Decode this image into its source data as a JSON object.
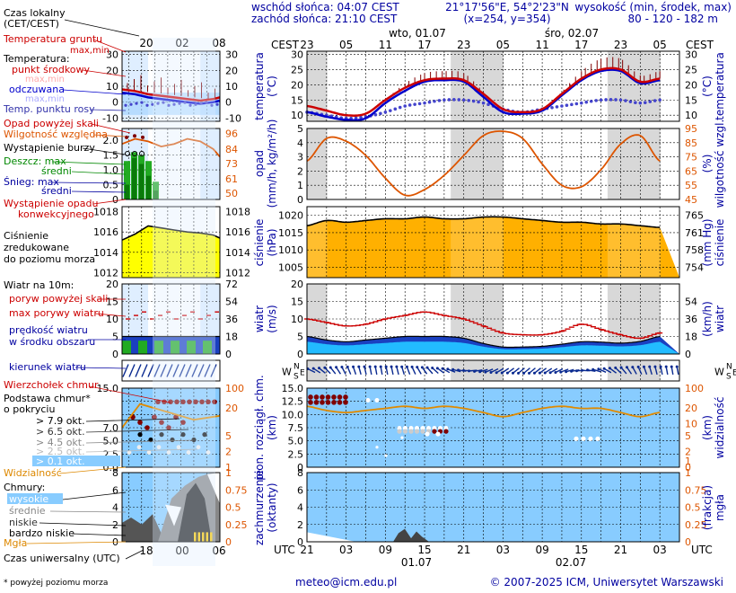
{
  "header": {
    "sunrise": "wschód słońca: 04:07 CEST",
    "sunset": "zachód słońca: 21:10 CEST",
    "coord_line": "21°17'56\"E, 54°2'23\"N",
    "grid_line": "(x=254, y=354)",
    "height_label": "wysokość (min, środek, max)",
    "height_values": "80 - 120 - 182 m"
  },
  "time_axis": {
    "tz_top": "CEST",
    "tz_bottom": "UTC",
    "top_hours": [
      "23",
      "05",
      "11",
      "17",
      "23",
      "05",
      "11",
      "17",
      "23",
      "05"
    ],
    "bottom_hours": [
      "21",
      "03",
      "09",
      "15",
      "21",
      "03",
      "09",
      "15",
      "21",
      "03"
    ],
    "day_labels_top": [
      "wto, 01.07",
      "śro, 02.07"
    ],
    "day_labels_bottom": [
      "01.07",
      "02.07"
    ],
    "legend_top_hours": [
      "20",
      "02",
      "08"
    ],
    "legend_bottom_hours": [
      "18",
      "00",
      "06"
    ]
  },
  "legend": {
    "local_time": "Czas lokalny",
    "local_time_sub": "(CET/CEST)",
    "ground_temp": "Temperatura gruntu",
    "ground_temp_sub": "max,min",
    "temperature": "Temperatura:",
    "mid_point": "punkt środkowy",
    "max_min": "max,min",
    "felt": "odczuwana",
    "felt_sub": "max,min",
    "dew_point": "Temp. punktu rosy",
    "precip_above": "Opad powyżej skali",
    "humidity": "Wilgotność względna",
    "storm": "Wystąpienie burzy",
    "rain_max": "Deszcz: max",
    "rain_mean": "średni",
    "snow_max": "Śnieg:  max",
    "snow_mean": "średni",
    "precip_occurrence": "Wystąpienie opadu",
    "precip_conv": "konwekcyjnego",
    "pressure_1": "Ciśnienie",
    "pressure_2": "zredukowane",
    "pressure_3": "do poziomu morza",
    "wind_title": "Wiatr na 10m:",
    "gust_above": "poryw powyżej skali",
    "gust_max": "max porywy wiatru",
    "wind_speed": "prędkość wiatru",
    "wind_speed_sub": "w środku obszaru",
    "wind_dir": "kierunek wiatru",
    "cloud_top": "Wierzchołek chmur",
    "cloud_base": "Podstawa chmur*",
    "cloud_base_sub": "o pokryciu",
    "okt_79": "> 7.9 okt.",
    "okt_65": "> 6.5 okt.",
    "okt_45": "> 4.5 okt.",
    "okt_25": "> 2.5 okt.",
    "okt_01": "> 0.1 okt.",
    "visibility": "Widzialność",
    "clouds": "Chmury:",
    "clouds_high": "wysokie",
    "clouds_mid": "średnie",
    "clouds_low": "niskie",
    "clouds_vlow": "bardzo niskie",
    "fog": "Mgła",
    "utc": "Czas uniwersalny (UTC)",
    "footnote": "* powyżej poziomu morza"
  },
  "panel_labels": {
    "temp_left": "temperatura",
    "temp_unit": "(°C)",
    "precip_left": "opad",
    "precip_unit": "(mm/h, kg/m²/h)",
    "humidity_right": "wilgotność wzgl.",
    "humidity_unit": "(%)",
    "pressure_left": "ciśnienie",
    "pressure_unit": "(hPa)",
    "pressure_right_unit": "(mm Hg)",
    "pressure_right": "ciśnienie",
    "wind_left": "wiatr",
    "wind_unit": "(m/s)",
    "wind_right_unit": "(km/h)",
    "wind_right": "wiatr",
    "cloud_left": "pion. rozciągł. chm.",
    "cloud_unit": "(km)",
    "vis_right": "widzialność",
    "vis_unit": "(km)",
    "cover_left": "zachmurzenie",
    "cover_unit": "(oktanty)",
    "fog_right": "mgła",
    "fog_unit": "(frakcja)"
  },
  "footer": {
    "email": "meteo@icm.edu.pl",
    "copyright": "© 2007-2025 ICM, Uniwersytet Warszawski"
  },
  "colors": {
    "red": "#cc0000",
    "dark_red": "#800000",
    "blue": "#0000cc",
    "navy": "#000080",
    "orange": "#dd5500",
    "yellow": "#ffff00",
    "pressure_fill": "#ffb000",
    "sky": "#88ccff",
    "night": "#d8d8d8"
  },
  "chart_data": [
    {
      "type": "line",
      "title": "temperatura",
      "x_hours_utc": [
        21,
        24,
        27,
        30,
        33,
        36,
        39,
        42,
        45,
        48,
        51,
        54,
        57,
        60,
        63,
        66,
        69,
        72,
        75
      ],
      "series": [
        {
          "name": "punkt środkowy",
          "values": [
            13,
            11.5,
            10,
            10.5,
            15,
            19,
            21.5,
            22,
            21.5,
            17,
            12,
            11,
            12,
            17,
            22,
            25,
            25,
            21,
            22
          ]
        },
        {
          "name": "odczuwana",
          "values": [
            11,
            9.5,
            8.5,
            9,
            14,
            18,
            21,
            21.5,
            21,
            16,
            11,
            10.5,
            11.5,
            16.5,
            21.5,
            24.5,
            24.5,
            20.5,
            21.5
          ]
        },
        {
          "name": "Temp. punktu rosy",
          "values": [
            11,
            10,
            9,
            9.5,
            11,
            13,
            14,
            15,
            15,
            14,
            12,
            11,
            12,
            13,
            14,
            15,
            15,
            14,
            15
          ]
        }
      ],
      "ylim": [
        8,
        30
      ],
      "ylabel": "(°C)"
    },
    {
      "type": "line",
      "title": "wilgotność wzgl.",
      "x_hours_utc": [
        21,
        24,
        27,
        30,
        33,
        36,
        39,
        42,
        45,
        48,
        51,
        54,
        57,
        60,
        63,
        66,
        69,
        72,
        75
      ],
      "series": [
        {
          "name": "Wilgotność względna",
          "values": [
            72,
            88,
            86,
            76,
            60,
            48,
            52,
            62,
            76,
            90,
            93,
            88,
            70,
            55,
            54,
            66,
            84,
            90,
            72
          ]
        }
      ],
      "ylim": [
        45,
        95
      ],
      "ylabel": "(%)"
    },
    {
      "type": "area",
      "title": "ciśnienie",
      "x_hours_utc": [
        21,
        24,
        27,
        30,
        33,
        36,
        39,
        42,
        45,
        48,
        51,
        54,
        57,
        60,
        63,
        66,
        69,
        72,
        75
      ],
      "series": [
        {
          "name": "Ciśnienie zredukowane do poziomu morza",
          "values": [
            1017,
            1018.5,
            1018,
            1018.5,
            1019,
            1019,
            1019.5,
            1019,
            1019,
            1019.5,
            1019.5,
            1019,
            1018.5,
            1018,
            1018,
            1017.5,
            1017.5,
            1017,
            1016.5
          ]
        }
      ],
      "ylim": [
        1002,
        1022
      ],
      "ylabel": "(hPa)"
    },
    {
      "type": "line",
      "title": "wiatr",
      "x_hours_utc": [
        21,
        24,
        27,
        30,
        33,
        36,
        39,
        42,
        45,
        48,
        51,
        54,
        57,
        60,
        63,
        66,
        69,
        72,
        75
      ],
      "series": [
        {
          "name": "max porywy wiatru",
          "values": [
            10,
            9,
            8,
            8.5,
            10,
            11,
            12,
            11,
            10,
            8,
            6,
            5.5,
            5.5,
            6.5,
            8.5,
            7,
            5.5,
            4.5,
            6
          ]
        },
        {
          "name": "prędkość wiatru",
          "values": [
            5,
            4,
            3.5,
            4,
            4.5,
            5,
            5,
            5,
            4.5,
            3,
            2,
            2,
            2.2,
            2.8,
            3.5,
            3.4,
            3.1,
            3.6,
            5
          ]
        }
      ],
      "ylim": [
        0,
        20
      ],
      "ylabel": "(m/s)"
    },
    {
      "type": "line",
      "title": "widzialność",
      "x_hours_utc": [
        21,
        24,
        27,
        30,
        33,
        36,
        39,
        42,
        45,
        48,
        51,
        54,
        57,
        60,
        63,
        66,
        69,
        72,
        75
      ],
      "series": [
        {
          "name": "Widzialność",
          "values": [
            25,
            23,
            22,
            23,
            24,
            25,
            24,
            25,
            24,
            22,
            20,
            22,
            24,
            25,
            24,
            24,
            22,
            20,
            22
          ]
        }
      ],
      "ylim": [
        0,
        100
      ],
      "ylabel": "(km)"
    }
  ]
}
